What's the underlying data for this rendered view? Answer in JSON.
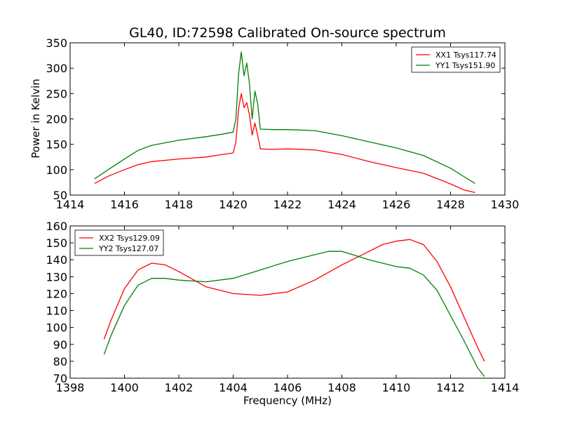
{
  "figure": {
    "title": "GL40, ID:72598 Calibrated On-source spectrum",
    "ylabel": "Power in Kelvin",
    "xlabel": "Frequency (MHz)"
  },
  "chart_data": [
    {
      "type": "line",
      "title": "GL40, ID:72598 Calibrated On-source spectrum",
      "xlabel": "",
      "ylabel": "Power in Kelvin",
      "xlim": [
        1414,
        1430
      ],
      "ylim": [
        50,
        350
      ],
      "xticks": [
        1414,
        1416,
        1418,
        1420,
        1422,
        1424,
        1426,
        1428,
        1430
      ],
      "yticks": [
        50,
        100,
        150,
        200,
        250,
        300,
        350
      ],
      "legend": "top-right",
      "grid": false,
      "series": [
        {
          "name": "XX1 Tsys117.74",
          "color": "#ff0000",
          "x": [
            1414.9,
            1415.4,
            1416.0,
            1416.5,
            1417.0,
            1418.0,
            1419.0,
            1419.6,
            1420.0,
            1420.1,
            1420.2,
            1420.3,
            1420.4,
            1420.5,
            1420.6,
            1420.7,
            1420.8,
            1420.9,
            1421.0,
            1421.5,
            1422.0,
            1423.0,
            1424.0,
            1425.0,
            1426.0,
            1427.0,
            1428.0,
            1428.5,
            1428.9
          ],
          "y": [
            73,
            87,
            100,
            110,
            116,
            121,
            125,
            130,
            133,
            155,
            220,
            250,
            222,
            232,
            208,
            168,
            192,
            168,
            141,
            140,
            141,
            139,
            130,
            116,
            104,
            93,
            72,
            60,
            55
          ]
        },
        {
          "name": "YY1 Tsys151.90",
          "color": "#008000",
          "x": [
            1414.9,
            1415.4,
            1416.0,
            1416.5,
            1417.0,
            1418.0,
            1419.0,
            1419.6,
            1420.0,
            1420.1,
            1420.2,
            1420.3,
            1420.4,
            1420.5,
            1420.6,
            1420.7,
            1420.8,
            1420.9,
            1421.0,
            1421.5,
            1422.0,
            1423.0,
            1424.0,
            1425.0,
            1426.0,
            1427.0,
            1428.0,
            1428.5,
            1428.9
          ],
          "y": [
            82,
            100,
            121,
            138,
            148,
            158,
            165,
            170,
            174,
            200,
            290,
            332,
            285,
            310,
            270,
            200,
            255,
            230,
            180,
            179,
            179,
            177,
            167,
            155,
            143,
            128,
            103,
            86,
            73
          ]
        }
      ]
    },
    {
      "type": "line",
      "title": "",
      "xlabel": "Frequency (MHz)",
      "ylabel": "",
      "xlim": [
        1398,
        1414
      ],
      "ylim": [
        70,
        160
      ],
      "xticks": [
        1398,
        1400,
        1402,
        1404,
        1406,
        1408,
        1410,
        1412,
        1414
      ],
      "yticks": [
        70,
        80,
        90,
        100,
        110,
        120,
        130,
        140,
        150,
        160
      ],
      "legend": "top-left",
      "grid": false,
      "series": [
        {
          "name": "XX2 Tsys129.09",
          "color": "#ff0000",
          "x": [
            1399.25,
            1399.5,
            1400.0,
            1400.5,
            1401.0,
            1401.5,
            1402.0,
            1403.0,
            1404.0,
            1405.0,
            1406.0,
            1407.0,
            1408.0,
            1409.0,
            1409.5,
            1410.0,
            1410.5,
            1411.0,
            1411.5,
            1412.0,
            1412.5,
            1413.0,
            1413.25
          ],
          "y": [
            93,
            104,
            123,
            134,
            138,
            137,
            133,
            124,
            120,
            119,
            121,
            128,
            137,
            145,
            149,
            151,
            152,
            149,
            139,
            124,
            106,
            88,
            80
          ]
        },
        {
          "name": "YY2 Tsys127.07",
          "color": "#008000",
          "x": [
            1399.25,
            1399.5,
            1400.0,
            1400.5,
            1401.0,
            1401.5,
            1402.0,
            1403.0,
            1404.0,
            1405.0,
            1406.0,
            1407.0,
            1407.5,
            1408.0,
            1409.0,
            1410.0,
            1410.5,
            1411.0,
            1411.5,
            1412.0,
            1412.5,
            1413.0,
            1413.25
          ],
          "y": [
            84,
            95,
            113,
            125,
            129,
            129,
            128,
            127,
            129,
            134,
            139,
            143,
            145,
            145,
            140,
            136,
            135,
            131,
            122,
            107,
            92,
            76,
            71
          ]
        }
      ]
    }
  ]
}
